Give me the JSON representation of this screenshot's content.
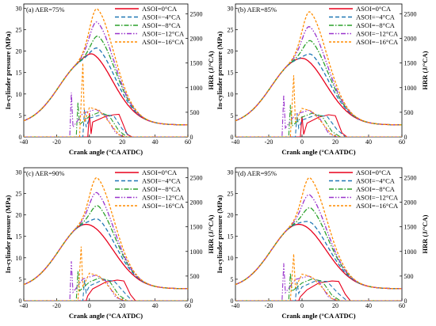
{
  "figure": {
    "x_axis_label": "Crank angle (°CA ATDC)",
    "y_left_label": "In-cylinder pressure (MPa)",
    "y_right_label": "HRR (J/°CA)",
    "x_ticks": [
      "-40",
      "-20",
      "0",
      "20",
      "40",
      "60"
    ],
    "y_left_ticks": [
      "0",
      "5",
      "10",
      "15",
      "20",
      "25",
      "30"
    ],
    "y_right_ticks": [
      "0",
      "500",
      "1000",
      "1500",
      "2000",
      "2500"
    ]
  },
  "series_styles": [
    {
      "name": "ASOI=0°CA",
      "color": "#e8001c",
      "dash": "solid"
    },
    {
      "name": "ASOI=−4°CA",
      "color": "#1f77b4",
      "dash": "dash"
    },
    {
      "name": "ASOI=−8°CA",
      "color": "#2ca02c",
      "dash": "dashdot"
    },
    {
      "name": "ASOI=−12°CA",
      "color": "#9933cc",
      "dash": "dashdotdot"
    },
    {
      "name": "ASOI=−16°CA",
      "color": "#ff8c00",
      "dash": "shortdash"
    }
  ],
  "chart_data": [
    {
      "type": "line",
      "panel_label": "(a) AER=75%",
      "xlabel": "Crank angle (°CA ATDC)",
      "ylabel": "In-cylinder pressure (MPa)",
      "y2label": "HRR (J/°CA)",
      "xlim": [
        -40,
        60
      ],
      "ylim": [
        0,
        31
      ],
      "y2lim": [
        0,
        2700
      ],
      "pressure_peaks": [
        {
          "series": "ASOI=0°CA",
          "x": 3,
          "y": 19.5
        },
        {
          "series": "ASOI=−4°CA",
          "x": 6,
          "y": 21.8
        },
        {
          "series": "ASOI=−8°CA",
          "x": 6,
          "y": 24.7
        },
        {
          "series": "ASOI=−12°CA",
          "x": 5,
          "y": 27.7
        },
        {
          "series": "ASOI=−16°CA",
          "x": 5,
          "y": 30.8
        }
      ],
      "hrr_curves": [
        {
          "series": "ASOI=0°CA",
          "points": [
            [
              -40,
              0
            ],
            [
              -1,
              0
            ],
            [
              0,
              480
            ],
            [
              1,
              60
            ],
            [
              2,
              300
            ],
            [
              10,
              420
            ],
            [
              15,
              450
            ],
            [
              18,
              460
            ],
            [
              20,
              300
            ],
            [
              23,
              50
            ],
            [
              26,
              0
            ],
            [
              60,
              0
            ]
          ]
        },
        {
          "series": "ASOI=−4°CA",
          "points": [
            [
              -40,
              0
            ],
            [
              -4,
              0
            ],
            [
              -3,
              560
            ],
            [
              -2,
              200
            ],
            [
              0,
              380
            ],
            [
              8,
              460
            ],
            [
              15,
              420
            ],
            [
              20,
              160
            ],
            [
              25,
              0
            ],
            [
              60,
              0
            ]
          ]
        },
        {
          "series": "ASOI=−8°CA",
          "points": [
            [
              -40,
              0
            ],
            [
              -8,
              0
            ],
            [
              -7,
              700
            ],
            [
              -6,
              250
            ],
            [
              0,
              420
            ],
            [
              6,
              500
            ],
            [
              12,
              430
            ],
            [
              18,
              120
            ],
            [
              23,
              0
            ],
            [
              60,
              0
            ]
          ]
        },
        {
          "series": "ASOI=−12°CA",
          "points": [
            [
              -40,
              0
            ],
            [
              -12,
              0
            ],
            [
              -11,
              900
            ],
            [
              -10,
              200
            ],
            [
              -4,
              480
            ],
            [
              4,
              560
            ],
            [
              10,
              420
            ],
            [
              16,
              80
            ],
            [
              21,
              0
            ],
            [
              60,
              0
            ]
          ]
        },
        {
          "series": "ASOI=−16°CA",
          "points": [
            [
              -40,
              0
            ],
            [
              -16,
              0
            ],
            [
              -6,
              0
            ],
            [
              -4,
              1500
            ],
            [
              -3,
              300
            ],
            [
              0,
              600
            ],
            [
              6,
              540
            ],
            [
              12,
              300
            ],
            [
              18,
              40
            ],
            [
              22,
              0
            ],
            [
              60,
              0
            ]
          ]
        }
      ]
    },
    {
      "type": "line",
      "panel_label": "(b) AER=85%",
      "xlabel": "Crank angle (°CA ATDC)",
      "ylabel": "In-cylinder pressure (MPa)",
      "y2label": "HRR (J/°CA)",
      "xlim": [
        -40,
        60
      ],
      "ylim": [
        0,
        31
      ],
      "y2lim": [
        0,
        2700
      ],
      "pressure_peaks": [
        {
          "series": "ASOI=0°CA",
          "x": 3,
          "y": 18.3
        },
        {
          "series": "ASOI=−4°CA",
          "x": 7,
          "y": 20.6
        },
        {
          "series": "ASOI=−8°CA",
          "x": 6,
          "y": 23.6
        },
        {
          "series": "ASOI=−12°CA",
          "x": 5,
          "y": 26.6
        },
        {
          "series": "ASOI=−16°CA",
          "x": 5,
          "y": 30.1
        }
      ],
      "hrr_curves": [
        {
          "series": "ASOI=0°CA",
          "points": [
            [
              -40,
              0
            ],
            [
              -1,
              0
            ],
            [
              0,
              420
            ],
            [
              1,
              50
            ],
            [
              3,
              280
            ],
            [
              10,
              400
            ],
            [
              16,
              450
            ],
            [
              20,
              430
            ],
            [
              24,
              80
            ],
            [
              27,
              0
            ],
            [
              60,
              0
            ]
          ]
        },
        {
          "series": "ASOI=−4°CA",
          "points": [
            [
              -40,
              0
            ],
            [
              -4,
              0
            ],
            [
              -3,
              480
            ],
            [
              -2,
              180
            ],
            [
              0,
              340
            ],
            [
              8,
              440
            ],
            [
              15,
              420
            ],
            [
              21,
              150
            ],
            [
              26,
              0
            ],
            [
              60,
              0
            ]
          ]
        },
        {
          "series": "ASOI=−8°CA",
          "points": [
            [
              -40,
              0
            ],
            [
              -8,
              0
            ],
            [
              -7,
              650
            ],
            [
              -6,
              220
            ],
            [
              0,
              400
            ],
            [
              6,
              480
            ],
            [
              12,
              420
            ],
            [
              18,
              110
            ],
            [
              23,
              0
            ],
            [
              60,
              0
            ]
          ]
        },
        {
          "series": "ASOI=−12°CA",
          "points": [
            [
              -40,
              0
            ],
            [
              -12,
              0
            ],
            [
              -11,
              850
            ],
            [
              -10,
              180
            ],
            [
              -4,
              460
            ],
            [
              4,
              540
            ],
            [
              10,
              410
            ],
            [
              16,
              70
            ],
            [
              21,
              0
            ],
            [
              60,
              0
            ]
          ]
        },
        {
          "series": "ASOI=−16°CA",
          "points": [
            [
              -40,
              0
            ],
            [
              -16,
              0
            ],
            [
              -7,
              0
            ],
            [
              -5,
              1250
            ],
            [
              -4,
              300
            ],
            [
              0,
              580
            ],
            [
              6,
              520
            ],
            [
              12,
              290
            ],
            [
              18,
              40
            ],
            [
              22,
              0
            ],
            [
              60,
              0
            ]
          ]
        }
      ]
    },
    {
      "type": "line",
      "panel_label": "(c) AER=90%",
      "xlabel": "Crank angle (°CA ATDC)",
      "ylabel": "In-cylinder pressure (MPa)",
      "y2label": "HRR (J/°CA)",
      "xlim": [
        -40,
        60
      ],
      "ylim": [
        0,
        31
      ],
      "y2lim": [
        0,
        2700
      ],
      "pressure_peaks": [
        {
          "series": "ASOI=0°CA",
          "x": 3,
          "y": 17.4
        },
        {
          "series": "ASOI=−4°CA",
          "x": 7,
          "y": 20.3
        },
        {
          "series": "ASOI=−8°CA",
          "x": 6,
          "y": 23.3
        },
        {
          "series": "ASOI=−12°CA",
          "x": 5,
          "y": 26.1
        },
        {
          "series": "ASOI=−16°CA",
          "x": 5,
          "y": 29.6
        }
      ],
      "hrr_curves": [
        {
          "series": "ASOI=0°CA",
          "points": [
            [
              -40,
              0
            ],
            [
              -2,
              0
            ],
            [
              -1,
              100
            ],
            [
              2,
              240
            ],
            [
              10,
              380
            ],
            [
              17,
              420
            ],
            [
              21,
              400
            ],
            [
              25,
              120
            ],
            [
              28,
              0
            ],
            [
              60,
              0
            ]
          ]
        },
        {
          "series": "ASOI=−4°CA",
          "points": [
            [
              -40,
              0
            ],
            [
              -4,
              0
            ],
            [
              -3,
              420
            ],
            [
              -2,
              160
            ],
            [
              0,
              300
            ],
            [
              8,
              420
            ],
            [
              15,
              400
            ],
            [
              22,
              140
            ],
            [
              26,
              0
            ],
            [
              60,
              0
            ]
          ]
        },
        {
          "series": "ASOI=−8°CA",
          "points": [
            [
              -40,
              0
            ],
            [
              -8,
              0
            ],
            [
              -7,
              600
            ],
            [
              -6,
              200
            ],
            [
              0,
              380
            ],
            [
              6,
              460
            ],
            [
              12,
              410
            ],
            [
              18,
              110
            ],
            [
              23,
              0
            ],
            [
              60,
              0
            ]
          ]
        },
        {
          "series": "ASOI=−12°CA",
          "points": [
            [
              -40,
              0
            ],
            [
              -12,
              0
            ],
            [
              -11,
              800
            ],
            [
              -10,
              170
            ],
            [
              -4,
              440
            ],
            [
              4,
              520
            ],
            [
              10,
              400
            ],
            [
              16,
              70
            ],
            [
              21,
              0
            ],
            [
              60,
              0
            ]
          ]
        },
        {
          "series": "ASOI=−16°CA",
          "points": [
            [
              -40,
              0
            ],
            [
              -16,
              0
            ],
            [
              -7,
              0
            ],
            [
              -5,
              1100
            ],
            [
              -4,
              280
            ],
            [
              0,
              560
            ],
            [
              6,
              500
            ],
            [
              12,
              280
            ],
            [
              18,
              40
            ],
            [
              22,
              0
            ],
            [
              60,
              0
            ]
          ]
        }
      ]
    },
    {
      "type": "line",
      "panel_label": "(d) AER=95%",
      "xlabel": "Crank angle (°CA ATDC)",
      "ylabel": "In-cylinder pressure (MPa)",
      "y2label": "HRR (J/°CA)",
      "xlim": [
        -40,
        60
      ],
      "ylim": [
        0,
        31
      ],
      "y2lim": [
        0,
        2700
      ],
      "pressure_peaks": [
        {
          "series": "ASOI=0°CA",
          "x": 2,
          "y": 17.0
        },
        {
          "series": "ASOI=−4°CA",
          "x": 7,
          "y": 19.5
        },
        {
          "series": "ASOI=−8°CA",
          "x": 6,
          "y": 22.8
        },
        {
          "series": "ASOI=−12°CA",
          "x": 5,
          "y": 25.6
        },
        {
          "series": "ASOI=−16°CA",
          "x": 5,
          "y": 29.6
        }
      ],
      "hrr_curves": [
        {
          "series": "ASOI=0°CA",
          "points": [
            [
              -40,
              0
            ],
            [
              -2,
              0
            ],
            [
              -1,
              80
            ],
            [
              3,
              220
            ],
            [
              10,
              360
            ],
            [
              18,
              400
            ],
            [
              22,
              390
            ],
            [
              26,
              130
            ],
            [
              29,
              0
            ],
            [
              60,
              0
            ]
          ]
        },
        {
          "series": "ASOI=−4°CA",
          "points": [
            [
              -40,
              0
            ],
            [
              -4,
              0
            ],
            [
              -3,
              380
            ],
            [
              -2,
              150
            ],
            [
              0,
              280
            ],
            [
              8,
              400
            ],
            [
              15,
              390
            ],
            [
              22,
              140
            ],
            [
              27,
              0
            ],
            [
              60,
              0
            ]
          ]
        },
        {
          "series": "ASOI=−8°CA",
          "points": [
            [
              -40,
              0
            ],
            [
              -8,
              0
            ],
            [
              -7,
              560
            ],
            [
              -6,
              190
            ],
            [
              0,
              360
            ],
            [
              6,
              440
            ],
            [
              12,
              400
            ],
            [
              18,
              110
            ],
            [
              23,
              0
            ],
            [
              60,
              0
            ]
          ]
        },
        {
          "series": "ASOI=−12°CA",
          "points": [
            [
              -40,
              0
            ],
            [
              -12,
              0
            ],
            [
              -11,
              760
            ],
            [
              -10,
              160
            ],
            [
              -4,
              430
            ],
            [
              4,
              500
            ],
            [
              10,
              390
            ],
            [
              16,
              70
            ],
            [
              21,
              0
            ],
            [
              60,
              0
            ]
          ]
        },
        {
          "series": "ASOI=−16°CA",
          "points": [
            [
              -40,
              0
            ],
            [
              -16,
              0
            ],
            [
              -7,
              0
            ],
            [
              -5,
              950
            ],
            [
              -4,
              260
            ],
            [
              0,
              540
            ],
            [
              6,
              480
            ],
            [
              12,
              270
            ],
            [
              18,
              40
            ],
            [
              22,
              0
            ],
            [
              60,
              0
            ]
          ]
        }
      ]
    }
  ]
}
